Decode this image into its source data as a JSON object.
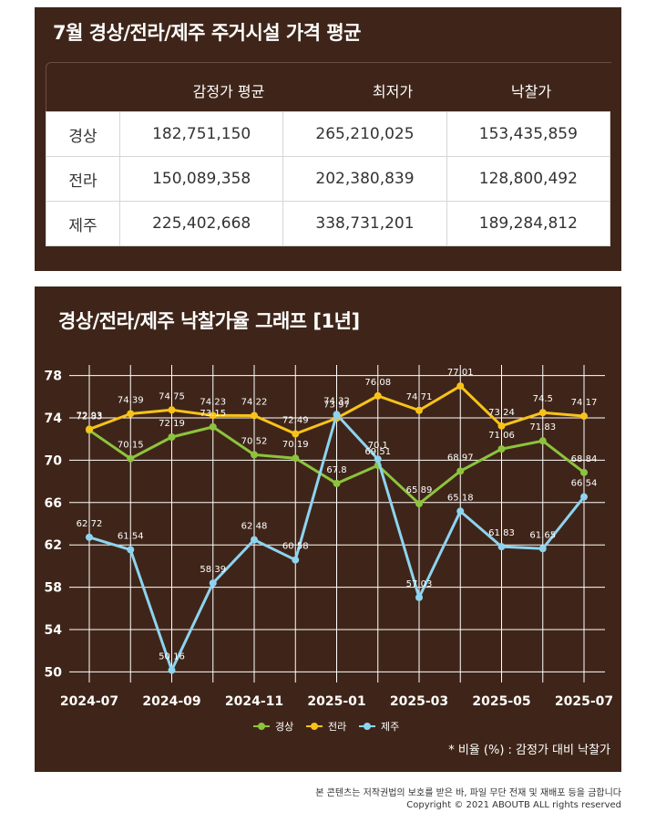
{
  "table": {
    "title": "7월 경상/전라/제주 주거시설 가격 평균",
    "headers": [
      "감정가 평균",
      "최저가",
      "낙찰가"
    ],
    "rows": [
      {
        "region": "경상",
        "cells": [
          "182,751,150",
          "265,210,025",
          "153,435,859"
        ]
      },
      {
        "region": "전라",
        "cells": [
          "150,089,358",
          "202,380,839",
          "128,800,492"
        ]
      },
      {
        "region": "제주",
        "cells": [
          "225,402,668",
          "338,731,201",
          "189,284,812"
        ]
      }
    ]
  },
  "chart_data": {
    "type": "line",
    "title": "경상/전라/제주 낙찰가율 그래프 [1년]",
    "x": [
      "2024-07",
      "2024-08",
      "2024-09",
      "2024-10",
      "2024-11",
      "2024-12",
      "2025-01",
      "2025-02",
      "2025-03",
      "2025-04",
      "2025-05",
      "2025-06",
      "2025-07"
    ],
    "x_tick_labels": [
      "2024-07",
      "2024-09",
      "2024-11",
      "2025-01",
      "2025-03",
      "2025-05",
      "2025-07"
    ],
    "y_ticks": [
      50,
      54,
      58,
      62,
      66,
      70,
      74,
      78
    ],
    "ylim": [
      49,
      79
    ],
    "series": [
      {
        "name": "경상",
        "color": "#8cc43d",
        "values": [
          72.83,
          70.15,
          72.19,
          73.15,
          70.52,
          70.19,
          67.8,
          69.51,
          65.89,
          68.97,
          71.06,
          71.83,
          68.84
        ]
      },
      {
        "name": "전라",
        "color": "#f7c319",
        "values": [
          72.93,
          74.39,
          74.75,
          74.23,
          74.22,
          72.49,
          73.97,
          76.08,
          74.71,
          77.01,
          73.24,
          74.5,
          74.17
        ]
      },
      {
        "name": "제주",
        "color": "#8dd4f0",
        "values": [
          62.72,
          61.54,
          50.16,
          58.39,
          62.48,
          60.58,
          74.32,
          70.1,
          57.03,
          65.18,
          61.83,
          61.65,
          66.54
        ]
      }
    ],
    "note": "* 비율 (%) : 감정가 대비 낙찰가"
  },
  "footer": {
    "line1": "본 콘텐츠는 저작권법의 보호를 받은 바, 파일 무단 전재 및 재배포 등을 금합니다",
    "line2": "Copyright © 2021 ABOUTB ALL rights reserved"
  }
}
